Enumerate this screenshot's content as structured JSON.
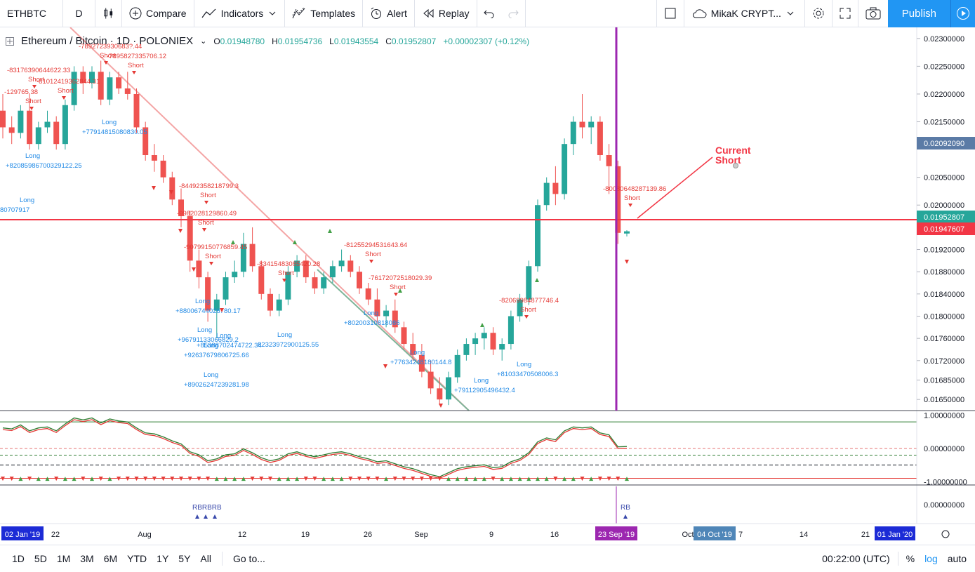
{
  "toolbar": {
    "symbol": "ETHBTC",
    "interval": "D",
    "compare": "Compare",
    "indicators": "Indicators",
    "templates": "Templates",
    "alert": "Alert",
    "replay": "Replay",
    "layout": "MikaK CRYPT...",
    "publish": "Publish"
  },
  "legend": {
    "title": "Ethereum / Bitcoin · 1D · POLONIEX",
    "o_label": "O",
    "o": "0.01948780",
    "h_label": "H",
    "h": "0.01954736",
    "l_label": "L",
    "l": "0.01943554",
    "c_label": "C",
    "c": "0.01952807",
    "change": "+0.00002307 (+0.12%)"
  },
  "colors": {
    "up": "#26a69a",
    "down": "#ef5350",
    "accent": "#2196f3",
    "vline": "#9c27b0",
    "hline": "#f23645",
    "trend_red": "#f4a5a5",
    "trend_green": "#7fb59a"
  },
  "price_axis": {
    "ticks": [
      "0.02300000",
      "0.02250000",
      "0.02200000",
      "0.02150000",
      "0.02050000",
      "0.02000000",
      "0.01920000",
      "0.01880000",
      "0.01840000",
      "0.01800000",
      "0.01760000",
      "0.01720000",
      "0.01685000",
      "0.01650000"
    ],
    "badge_blue": "0.02092090",
    "badge_green": "0.01952807",
    "badge_red": "0.01947607"
  },
  "osc_axis": {
    "ticks": [
      "1.00000000",
      "0.00000000",
      "-1.00000000"
    ],
    "lower_tick": "0.00000000"
  },
  "time_axis": {
    "ticks": [
      "22",
      "Aug",
      "12",
      "19",
      "26",
      "Sep",
      "9",
      "16",
      "Oct",
      "7",
      "14",
      "21"
    ],
    "badge_left": "02 Jan '19",
    "badge_mid": "23 Sep '19",
    "badge_oct": "04 Oct '19",
    "badge_right": "01 Jan '20"
  },
  "annotation": {
    "line1": "Current",
    "line2": "Short"
  },
  "signals": {
    "short_labels": [
      "-7892723930683?.44",
      "-789582733570​6.12",
      "-83176390644622.33",
      "-81012419362844.31",
      "-129765.38",
      "-84492358218799.3",
      "-9982028129860.49",
      "-90799150776859.45",
      "-83415483085420.28",
      "-81255294531643.64",
      "-7617207251​8029.39",
      "-82069984877746.4",
      "-80080648287139.86"
    ],
    "long_labels": [
      "+77914815080830.05",
      "+82085986700329122.25",
      "80707917",
      "+88006744026780.17",
      "+96791133066829.2",
      "+85388702474722.34",
      "+92637679806725.66",
      "+89026247239281.98",
      "82323972900125.55",
      "+80200310818086",
      "+77634248180144.8",
      "+79112905496432.4",
      "+81033470508006.3"
    ],
    "short_word": "Short",
    "long_word": "Long",
    "rb_left": "RBRBRB",
    "rb_right": "RB"
  },
  "bottombar": {
    "ranges": [
      "1D",
      "5D",
      "1M",
      "3M",
      "6M",
      "YTD",
      "1Y",
      "5Y",
      "All"
    ],
    "goto": "Go to...",
    "clock": "00:22:00 (UTC)",
    "pct": "%",
    "log": "log",
    "auto": "auto"
  },
  "chart_data": {
    "type": "candlestick",
    "symbol": "ETHBTC",
    "ylim": [
      0.0163,
      0.0232
    ],
    "candles": [
      [
        0.0217,
        0.022,
        0.0212,
        0.0214
      ],
      [
        0.0214,
        0.0216,
        0.0211,
        0.0213
      ],
      [
        0.0213,
        0.0218,
        0.0212,
        0.0217
      ],
      [
        0.0217,
        0.022,
        0.021,
        0.0211
      ],
      [
        0.0211,
        0.0215,
        0.021,
        0.0214
      ],
      [
        0.0214,
        0.0217,
        0.0213,
        0.0215
      ],
      [
        0.0215,
        0.0216,
        0.021,
        0.0211
      ],
      [
        0.0211,
        0.0219,
        0.021,
        0.0218
      ],
      [
        0.0218,
        0.0225,
        0.0217,
        0.0224
      ],
      [
        0.0224,
        0.0225,
        0.022,
        0.0222
      ],
      [
        0.0222,
        0.0225,
        0.0221,
        0.0224
      ],
      [
        0.0224,
        0.0226,
        0.0218,
        0.0219
      ],
      [
        0.0219,
        0.0224,
        0.0218,
        0.0223
      ],
      [
        0.0223,
        0.0224,
        0.022,
        0.0221
      ],
      [
        0.0221,
        0.0224,
        0.0219,
        0.022
      ],
      [
        0.022,
        0.0221,
        0.0213,
        0.0214
      ],
      [
        0.0214,
        0.0215,
        0.0208,
        0.0209
      ],
      [
        0.0209,
        0.0211,
        0.0206,
        0.0208
      ],
      [
        0.0208,
        0.0209,
        0.0204,
        0.0205
      ],
      [
        0.0205,
        0.0206,
        0.02,
        0.0201
      ],
      [
        0.0201,
        0.0203,
        0.0196,
        0.0198
      ],
      [
        0.0198,
        0.0199,
        0.0188,
        0.019
      ],
      [
        0.019,
        0.0192,
        0.0185,
        0.0187
      ],
      [
        0.0187,
        0.0188,
        0.0179,
        0.0181
      ],
      [
        0.0181,
        0.0184,
        0.0176,
        0.0183
      ],
      [
        0.0183,
        0.0188,
        0.0182,
        0.0187
      ],
      [
        0.0187,
        0.019,
        0.0186,
        0.0188
      ],
      [
        0.0188,
        0.0195,
        0.0187,
        0.0193
      ],
      [
        0.0193,
        0.0196,
        0.0188,
        0.0189
      ],
      [
        0.0189,
        0.019,
        0.0183,
        0.0184
      ],
      [
        0.0184,
        0.0185,
        0.018,
        0.0181
      ],
      [
        0.0181,
        0.0184,
        0.018,
        0.0183
      ],
      [
        0.0183,
        0.0189,
        0.0182,
        0.0188
      ],
      [
        0.0188,
        0.0191,
        0.0187,
        0.019
      ],
      [
        0.019,
        0.0191,
        0.0186,
        0.0187
      ],
      [
        0.0187,
        0.0188,
        0.0184,
        0.0185
      ],
      [
        0.0185,
        0.0188,
        0.0184,
        0.0187
      ],
      [
        0.0187,
        0.019,
        0.0186,
        0.0189
      ],
      [
        0.0189,
        0.0192,
        0.0188,
        0.019
      ],
      [
        0.019,
        0.0191,
        0.0187,
        0.0188
      ],
      [
        0.0188,
        0.0189,
        0.0184,
        0.0185
      ],
      [
        0.0185,
        0.0186,
        0.0182,
        0.0183
      ],
      [
        0.0183,
        0.0185,
        0.0179,
        0.018
      ],
      [
        0.018,
        0.0182,
        0.0178,
        0.0181
      ],
      [
        0.0181,
        0.0183,
        0.0177,
        0.0178
      ],
      [
        0.0178,
        0.0179,
        0.0174,
        0.0175
      ],
      [
        0.0175,
        0.0177,
        0.0172,
        0.0173
      ],
      [
        0.0173,
        0.0175,
        0.0169,
        0.017
      ],
      [
        0.017,
        0.0172,
        0.0166,
        0.0167
      ],
      [
        0.0167,
        0.0169,
        0.0164,
        0.0165
      ],
      [
        0.0165,
        0.017,
        0.0164,
        0.0169
      ],
      [
        0.0169,
        0.0174,
        0.0168,
        0.0173
      ],
      [
        0.0173,
        0.0176,
        0.0172,
        0.0175
      ],
      [
        0.0175,
        0.0177,
        0.0173,
        0.0176
      ],
      [
        0.0176,
        0.0178,
        0.0174,
        0.0177
      ],
      [
        0.0177,
        0.0178,
        0.0173,
        0.0174
      ],
      [
        0.0174,
        0.0176,
        0.0172,
        0.0175
      ],
      [
        0.0175,
        0.0181,
        0.0174,
        0.018
      ],
      [
        0.018,
        0.0184,
        0.0179,
        0.0183
      ],
      [
        0.0183,
        0.019,
        0.0182,
        0.0189
      ],
      [
        0.0189,
        0.0201,
        0.0188,
        0.02
      ],
      [
        0.02,
        0.0205,
        0.0199,
        0.0204
      ],
      [
        0.0204,
        0.0207,
        0.02,
        0.0202
      ],
      [
        0.0202,
        0.0212,
        0.0201,
        0.0211
      ],
      [
        0.0211,
        0.0216,
        0.0209,
        0.0215
      ],
      [
        0.0215,
        0.022,
        0.0212,
        0.0214
      ],
      [
        0.0214,
        0.0216,
        0.0211,
        0.0215
      ],
      [
        0.0215,
        0.0216,
        0.0208,
        0.0209
      ],
      [
        0.0209,
        0.0211,
        0.0202,
        0.0207
      ],
      [
        0.0207,
        0.0208,
        0.0193,
        0.0195
      ],
      [
        0.0194878,
        0.01954736,
        0.01943554,
        0.01952807
      ]
    ],
    "oscillator": {
      "ylim": [
        -1.1,
        1.1
      ],
      "levels": [
        0.8,
        0.0,
        -0.2,
        -0.5,
        -0.9
      ]
    }
  }
}
